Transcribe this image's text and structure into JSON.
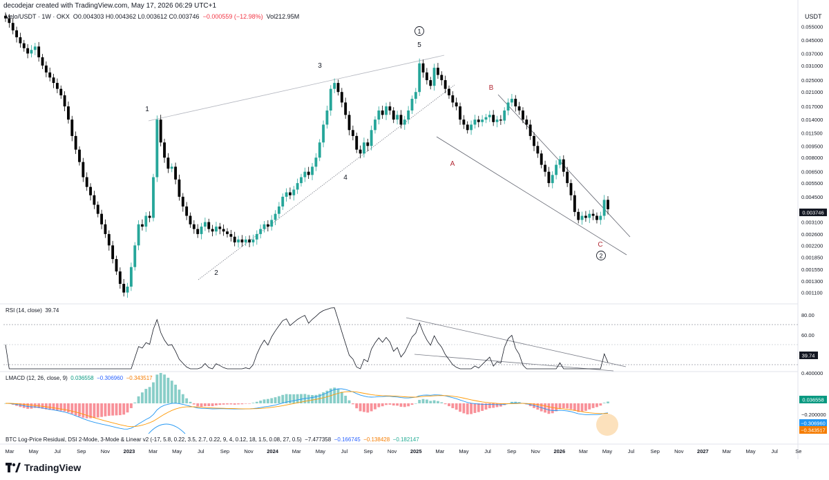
{
  "header": {
    "attribution": "decodejar created with TradingView.com, May 17, 2026 06:29 UTC+1"
  },
  "legend": {
    "symbol": "Velo/USDT · 1W · OKX",
    "ohlc": "O0.004303 H0.004362 L0.003612 C0.003746",
    "change": "−0.000559 (−12.98%)",
    "volume": "Vol212.95M"
  },
  "price_axis": {
    "unit": "USDT",
    "labels": [
      "0.055000",
      "0.045000",
      "0.037000",
      "0.031000",
      "0.025000",
      "0.021000",
      "0.017000",
      "0.014000",
      "0.011500",
      "0.009500",
      "0.008000",
      "0.006500",
      "0.005500",
      "0.004500",
      "0.003100",
      "0.002600",
      "0.002200",
      "0.001850",
      "0.001550",
      "0.001300",
      "0.001100"
    ],
    "last_price": "0.003746"
  },
  "rsi": {
    "title": "RSI (14, close)",
    "value": "39.74",
    "levels": [
      "80.00",
      "60.00"
    ]
  },
  "lmacd": {
    "title": "LMACD (12, 26, close, 9)",
    "hist": "0.036558",
    "macd": "−0.306960",
    "signal": "−0.343517",
    "levels": [
      "0.400000",
      "−0.200000"
    ]
  },
  "btc_indicator": {
    "title": "BTC Log-Price Residual, DSI 2-Mode, 3-Mode & Linear v2 (-17, 5.8, 0.22, 3.5, 2.7, 0.22, 9, 4, 0.12, 18, 1.5, 0.08, 27, 0.5)",
    "v1": "−7.477358",
    "v2": "−0.166745",
    "v3": "−0.138428",
    "v4": "−0.182147"
  },
  "time_axis": [
    "Mar",
    "May",
    "Jul",
    "Sep",
    "Nov",
    "2023",
    "Mar",
    "May",
    "Jul",
    "Sep",
    "Nov",
    "2024",
    "Mar",
    "May",
    "Jul",
    "Sep",
    "Nov",
    "2025",
    "Mar",
    "May",
    "Jul",
    "Sep",
    "Nov",
    "2026",
    "Mar",
    "May",
    "Jul",
    "Sep",
    "Nov",
    "2027",
    "Mar",
    "May",
    "Jul",
    "Se"
  ],
  "wave_labels": {
    "w1": "1",
    "w2": "2",
    "w3": "3",
    "w4": "4",
    "w5": "5",
    "circle1": "1",
    "circle2": "2",
    "A": "A",
    "B": "B",
    "C": "C"
  },
  "footer": {
    "brand": "TradingView"
  },
  "colors": {
    "up": "#26a69a",
    "down": "#000000",
    "macd": "#2196f3",
    "signal": "#ff9800",
    "hist_pos": "#26a69a",
    "hist_neg": "#f23645",
    "wave_red": "#b22833"
  },
  "chart_data": {
    "type": "candlestick",
    "title": "Velo/USDT · 1W · OKX",
    "ylabel": "USDT",
    "y_scale": "log",
    "ylim": [
      0.00095,
      0.065
    ],
    "series": [
      {
        "name": "Velo/USDT",
        "close": [
          0.062,
          0.058,
          0.052,
          0.047,
          0.043,
          0.04,
          0.037,
          0.039,
          0.041,
          0.035,
          0.031,
          0.028,
          0.026,
          0.024,
          0.022,
          0.02,
          0.017,
          0.014,
          0.011,
          0.009,
          0.0075,
          0.006,
          0.0052,
          0.0046,
          0.004,
          0.0035,
          0.003,
          0.0026,
          0.0022,
          0.0018,
          0.0015,
          0.00125,
          0.0011,
          0.0012,
          0.0016,
          0.0022,
          0.003,
          0.0029,
          0.0034,
          0.0033,
          0.006,
          0.014,
          0.01,
          0.008,
          0.0068,
          0.007,
          0.0058,
          0.0045,
          0.0039,
          0.0034,
          0.003,
          0.0028,
          0.0026,
          0.0029,
          0.0031,
          0.0028,
          0.0027,
          0.0029,
          0.0028,
          0.0027,
          0.0026,
          0.0025,
          0.0023,
          0.0024,
          0.0023,
          0.0024,
          0.0023,
          0.0024,
          0.0026,
          0.0028,
          0.003,
          0.0029,
          0.0032,
          0.0035,
          0.0039,
          0.0045,
          0.0048,
          0.0046,
          0.005,
          0.0055,
          0.006,
          0.0065,
          0.0062,
          0.007,
          0.008,
          0.01,
          0.013,
          0.016,
          0.022,
          0.024,
          0.021,
          0.018,
          0.015,
          0.012,
          0.011,
          0.009,
          0.0085,
          0.01,
          0.0095,
          0.012,
          0.014,
          0.016,
          0.015,
          0.017,
          0.016,
          0.014,
          0.015,
          0.013,
          0.014,
          0.016,
          0.019,
          0.021,
          0.032,
          0.028,
          0.025,
          0.023,
          0.03,
          0.027,
          0.025,
          0.022,
          0.02,
          0.018,
          0.017,
          0.014,
          0.013,
          0.012,
          0.013,
          0.014,
          0.0135,
          0.014,
          0.0145,
          0.015,
          0.0135,
          0.014,
          0.0138,
          0.016,
          0.018,
          0.019,
          0.017,
          0.016,
          0.014,
          0.013,
          0.011,
          0.0095,
          0.0085,
          0.0072,
          0.0065,
          0.0055,
          0.0062,
          0.0072,
          0.0078,
          0.0065,
          0.0055,
          0.0046,
          0.0036,
          0.0032,
          0.0034,
          0.0033,
          0.0035,
          0.0034,
          0.0032,
          0.0034,
          0.0043,
          0.003746
        ]
      }
    ]
  }
}
